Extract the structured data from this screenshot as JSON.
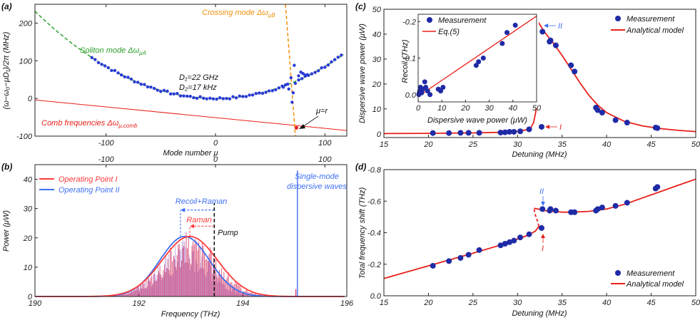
{
  "chart_data": [
    {
      "id": "a",
      "panel_label": "(a)",
      "type": "scatter",
      "xlabel": "Mode number μ",
      "ylabel": "(ω−ω₀−μD₁)/2π (MHz)",
      "xlim": [
        -165,
        120
      ],
      "ylim": [
        -100,
        250
      ],
      "xticks": [
        "-100",
        "0",
        "100"
      ],
      "xtick_values": [
        -100,
        0,
        100
      ],
      "yticks": [
        "200",
        "100",
        "0",
        "-100"
      ],
      "ytick_values": [
        200,
        100,
        0,
        -100
      ],
      "annotations": {
        "soliton": "Soliton mode Δω",
        "soliton_sub": "μA",
        "crossing": "Crossing mode Δω",
        "crossing_sub": "μB",
        "comb": "Comb frequencies Δω",
        "comb_sub": "μ,comb",
        "d1": "D₁=22 GHz",
        "d2": "D₂=17 kHz",
        "mu_r": "μ=r"
      },
      "soliton_fit": {
        "d2_mhz": 0.017,
        "x_from": -165,
        "x_to": 117,
        "offset_mhz": 0
      },
      "comb_line": {
        "x": [
          -165,
          120
        ],
        "y": [
          -4,
          -85
        ]
      },
      "crossing_curve": {
        "x_from": 63,
        "x_to": 74
      },
      "measured": {
        "x_from": -113,
        "x_to": 117,
        "step": 3,
        "outliers": [
          {
            "x": 67,
            "y": 25
          },
          {
            "x": 69,
            "y": 55
          },
          {
            "x": 70,
            "y": -10
          },
          {
            "x": 72,
            "y": 88
          },
          {
            "x": 73,
            "y": 40
          },
          {
            "x": 71,
            "y": 15
          },
          {
            "x": 74,
            "y": -78
          }
        ]
      }
    },
    {
      "id": "b",
      "panel_label": "(b)",
      "type": "area",
      "xlabel": "Frequency (THz)",
      "ylabel": "Power (μW)",
      "top_axis_ticks": [
        "-100",
        "0",
        "100"
      ],
      "top_axis_values": [
        -100,
        0,
        100
      ],
      "xlim": [
        190,
        196
      ],
      "ylim": [
        0,
        45
      ],
      "xticks": [
        "190",
        "192",
        "194",
        "196"
      ],
      "xtick_values": [
        190,
        192,
        194,
        196
      ],
      "yticks": [
        "40",
        "30",
        "20",
        "10",
        "0"
      ],
      "ytick_values": [
        40,
        30,
        20,
        10,
        0
      ],
      "legend": [
        {
          "name": "Operating Point I",
          "color": "#ff3b3b"
        },
        {
          "name": "Operating Point II",
          "color": "#3f6ff2"
        }
      ],
      "series": [
        {
          "name": "Operating Point I",
          "center_thz": 192.98,
          "peak_uw": 20.5,
          "width_thz": 0.95
        },
        {
          "name": "Operating Point II",
          "center_thz": 192.88,
          "peak_uw": 20.5,
          "width_thz": 0.85,
          "spike_thz": 195.05,
          "spike_uw": 43
        }
      ],
      "annotations": {
        "recoil_raman": "Recoil+Raman",
        "raman": "Raman",
        "pump": "Pump",
        "single_mode": "Single-mode",
        "single_mode_2": "dispersive waves"
      },
      "pump_thz": 193.45,
      "raman_thz": 192.98,
      "recoil_thz": 192.8
    },
    {
      "id": "c",
      "panel_label": "(c)",
      "type": "scatter",
      "xlabel": "Detuning (MHz)",
      "ylabel": "Dispersive wave power (μW)",
      "xlim": [
        15,
        50
      ],
      "ylim": [
        -1.5,
        50
      ],
      "xticks": [
        "15",
        "20",
        "25",
        "30",
        "35",
        "40",
        "45",
        "50"
      ],
      "xtick_values": [
        15,
        20,
        25,
        30,
        35,
        40,
        45,
        50
      ],
      "yticks": [
        "0",
        "10",
        "20",
        "30",
        "40",
        "50"
      ],
      "ytick_values": [
        0,
        10,
        20,
        30,
        40,
        50
      ],
      "legend": [
        {
          "name": "Measurement",
          "kind": "dot"
        },
        {
          "name": "Analytical model",
          "kind": "line"
        }
      ],
      "labels": {
        "I": "I",
        "II": "II"
      },
      "measurement": {
        "x": [
          20.5,
          22.3,
          23.6,
          24.5,
          25.7,
          28.1,
          28.6,
          29.1,
          29.6,
          30.3,
          31.3,
          32.7,
          32.8,
          33.6,
          33.7,
          34.3,
          36.0,
          36.4,
          38.8,
          39.0,
          39.5,
          41.0,
          42.3,
          45.5,
          45.7
        ],
        "y": [
          0.3,
          0.3,
          0.4,
          0.4,
          0.4,
          0.5,
          0.6,
          0.8,
          0.8,
          1.0,
          1.8,
          2.8,
          41.0,
          37.0,
          37.5,
          35.5,
          27.5,
          25.0,
          10.5,
          9.5,
          8.5,
          5.5,
          4.5,
          2.5,
          2.3
        ]
      },
      "model": {
        "branch1": {
          "x": [
            15,
            20,
            25,
            28,
            30,
            31,
            31.5,
            31.8,
            32.0,
            32.2
          ],
          "y": [
            0.1,
            0.2,
            0.35,
            0.6,
            1.0,
            1.6,
            2.5,
            4.5,
            8.0,
            12.0
          ]
        },
        "branch2_dashed": {
          "x": [
            32.2,
            32.15,
            32.0,
            31.85,
            31.8
          ],
          "y": [
            12.0,
            20.0,
            32.0,
            42.0,
            48.0
          ]
        },
        "branch3": {
          "x": [
            31.8,
            32.3,
            33.0,
            34.0,
            35.0,
            36.0,
            37.0,
            38.0,
            39.0,
            40.0,
            42.0,
            44.0,
            46.0,
            48.0,
            50.0
          ],
          "y": [
            48.0,
            45.0,
            41.0,
            36.5,
            31.5,
            26.0,
            20.5,
            15.5,
            11.5,
            8.5,
            5.0,
            3.2,
            2.1,
            1.4,
            0.9
          ]
        }
      },
      "inset": {
        "xlabel": "Dispersive wave power (μW)",
        "ylabel": "Recoil (THz)",
        "xlim": [
          0,
          50
        ],
        "ylim": [
          0.02,
          -0.22
        ],
        "xticks": [
          "0",
          "10",
          "20",
          "30",
          "40",
          "50"
        ],
        "xtick_values": [
          0,
          10,
          20,
          30,
          40,
          50
        ],
        "yticks": [
          "-0.2",
          "-0.1",
          "0.0"
        ],
        "ytick_values": [
          -0.2,
          -0.1,
          0.0
        ],
        "legend": [
          {
            "name": "Measurement",
            "kind": "dot"
          },
          {
            "name": "Eq.(5)",
            "kind": "line"
          }
        ],
        "measurement": {
          "x": [
            0.3,
            0.5,
            0.7,
            1.0,
            1.5,
            2.0,
            2.8,
            3.2,
            4.0,
            5.0,
            8.5,
            9.5,
            10.5,
            24.5,
            25.5,
            27.5,
            35.5,
            37.5,
            41.0
          ],
          "y": [
            0.0,
            -0.005,
            -0.01,
            -0.02,
            -0.005,
            -0.015,
            -0.035,
            -0.02,
            -0.01,
            0.0,
            -0.015,
            -0.01,
            -0.02,
            -0.08,
            -0.09,
            -0.1,
            -0.14,
            -0.17,
            -0.19
          ]
        },
        "model": {
          "x": [
            0,
            50
          ],
          "y": [
            0.005,
            -0.215
          ]
        }
      }
    },
    {
      "id": "d",
      "panel_label": "(d)",
      "type": "scatter",
      "xlabel": "Detuning (MHz)",
      "ylabel": "Total frequency shift (THz)",
      "xlim": [
        15,
        50
      ],
      "ylim": [
        0.0,
        -0.8
      ],
      "xticks": [
        "15",
        "20",
        "25",
        "30",
        "35",
        "40",
        "45",
        "50"
      ],
      "xtick_values": [
        15,
        20,
        25,
        30,
        35,
        40,
        45,
        50
      ],
      "yticks": [
        "-0.8",
        "-0.6",
        "-0.4",
        "-0.2",
        "0.0"
      ],
      "ytick_values": [
        -0.8,
        -0.6,
        -0.4,
        -0.2,
        0.0
      ],
      "legend": [
        {
          "name": "Measurement",
          "kind": "dot"
        },
        {
          "name": "Analytical model",
          "kind": "line"
        }
      ],
      "labels": {
        "I": "I",
        "II": "II"
      },
      "measurement": {
        "x": [
          20.5,
          22.3,
          23.6,
          24.5,
          25.7,
          28.1,
          28.6,
          29.1,
          29.6,
          30.3,
          31.3,
          32.7,
          32.8,
          33.6,
          33.7,
          34.3,
          36.0,
          36.4,
          38.8,
          39.0,
          39.5,
          41.0,
          42.3,
          45.5,
          45.7
        ],
        "y": [
          -0.19,
          -0.22,
          -0.24,
          -0.26,
          -0.29,
          -0.32,
          -0.33,
          -0.34,
          -0.35,
          -0.37,
          -0.39,
          -0.43,
          -0.55,
          -0.54,
          -0.55,
          -0.54,
          -0.53,
          -0.53,
          -0.54,
          -0.55,
          -0.56,
          -0.57,
          -0.59,
          -0.68,
          -0.69
        ]
      },
      "model": {
        "branch1": {
          "x": [
            15,
            20,
            25,
            28,
            30,
            31,
            32,
            32.4
          ],
          "y": [
            -0.11,
            -0.19,
            -0.27,
            -0.32,
            -0.36,
            -0.38,
            -0.41,
            -0.44
          ]
        },
        "branch2_dashed": {
          "x": [
            32.4,
            32.2,
            31.95,
            31.85
          ],
          "y": [
            -0.44,
            -0.48,
            -0.52,
            -0.555
          ]
        },
        "branch3": {
          "x": [
            31.85,
            32.3,
            33,
            34,
            35,
            36,
            38,
            40,
            42,
            44,
            46,
            48,
            50
          ],
          "y": [
            -0.555,
            -0.55,
            -0.54,
            -0.535,
            -0.53,
            -0.53,
            -0.535,
            -0.55,
            -0.58,
            -0.62,
            -0.66,
            -0.7,
            -0.74
          ]
        }
      }
    }
  ]
}
